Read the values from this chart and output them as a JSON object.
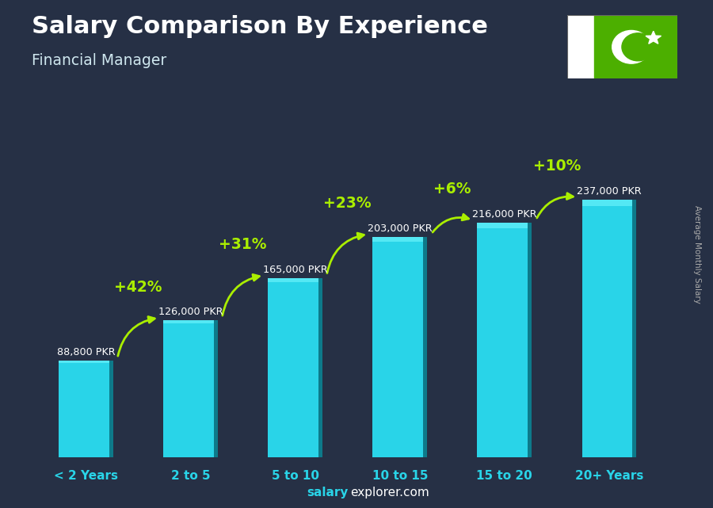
{
  "title": "Salary Comparison By Experience",
  "subtitle": "Financial Manager",
  "ylabel": "Average Monthly Salary",
  "footer_salary": "salary",
  "footer_rest": "explorer.com",
  "categories": [
    "< 2 Years",
    "2 to 5",
    "5 to 10",
    "10 to 15",
    "15 to 20",
    "20+ Years"
  ],
  "values": [
    88800,
    126000,
    165000,
    203000,
    216000,
    237000
  ],
  "value_labels": [
    "88,800 PKR",
    "126,000 PKR",
    "165,000 PKR",
    "203,000 PKR",
    "216,000 PKR",
    "237,000 PKR"
  ],
  "pct_labels": [
    "+42%",
    "+31%",
    "+23%",
    "+6%",
    "+10%"
  ],
  "bar_color": "#29d4e8",
  "bar_dark": "#0d7a8a",
  "bar_light": "#60eef8",
  "bg_color": "#263045",
  "title_color": "#ffffff",
  "subtitle_color": "#d0e8f0",
  "pct_color": "#aaee00",
  "value_label_color": "#ffffff",
  "cat_label_color": "#29d4e8",
  "footer_bold_color": "#29d4e8",
  "footer_normal_color": "#ffffff",
  "ylabel_color": "#aaaaaa",
  "flag_green": "#4caf00",
  "flag_white": "#ffffff",
  "figsize": [
    9.0,
    6.41
  ],
  "dpi": 100
}
